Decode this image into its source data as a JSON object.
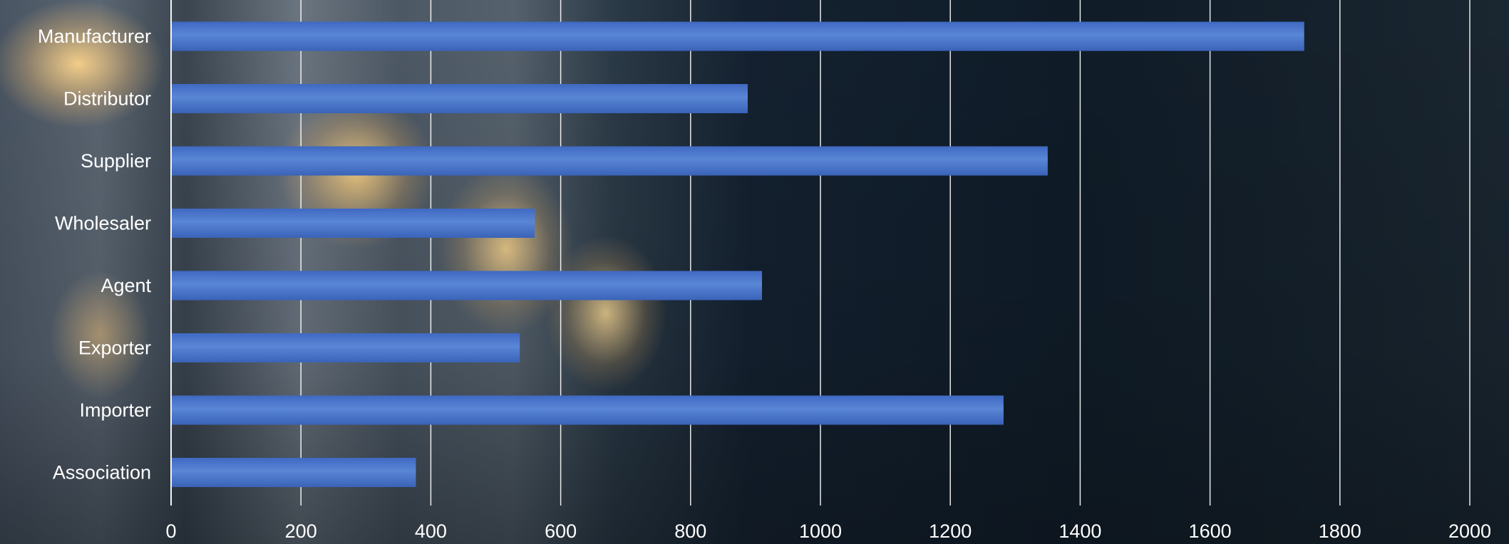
{
  "chart_data": {
    "type": "bar",
    "orientation": "horizontal",
    "title": "",
    "xlabel": "",
    "ylabel": "",
    "categories": [
      "Manufacturer",
      "Distributor",
      "Supplier",
      "Wholesaler",
      "Agent",
      "Exporter",
      "Importer",
      "Association"
    ],
    "values": [
      1745,
      888,
      1350,
      560,
      910,
      537,
      1282,
      377
    ],
    "xlim": [
      0,
      2000
    ],
    "xticks": [
      "0",
      "200",
      "400",
      "600",
      "800",
      "1000",
      "1200",
      "1400",
      "1600",
      "1800",
      "2000"
    ],
    "grid": "vertical",
    "legend": "none",
    "colors": {
      "bar": "#4472c4",
      "bar_highlight": "#5a86d6",
      "text": "#ffffff",
      "grid": "#ffffff"
    }
  }
}
